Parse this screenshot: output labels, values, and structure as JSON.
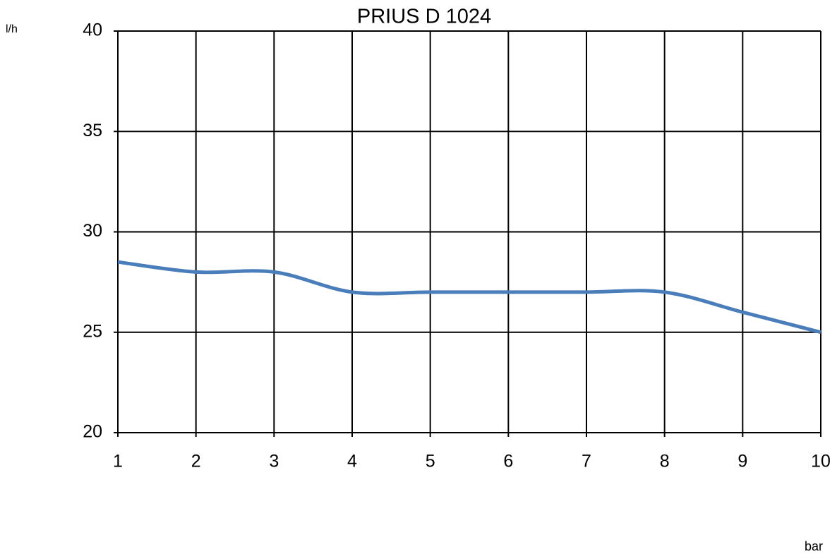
{
  "chart_data": {
    "type": "line",
    "title": "PRIUS D 1024",
    "y_label": "l/h",
    "x_label": "bar",
    "x": [
      1,
      2,
      3,
      4,
      5,
      6,
      7,
      8,
      9,
      10
    ],
    "series": [
      {
        "name": "PRIUS D 1024",
        "color": "#4a7ebb",
        "values": [
          28.5,
          28,
          28,
          27,
          27,
          27,
          27,
          27,
          26,
          25
        ]
      }
    ],
    "xlim": [
      1,
      10
    ],
    "xticks": [
      1,
      2,
      3,
      4,
      5,
      6,
      7,
      8,
      9,
      10
    ],
    "ylim": [
      20,
      40
    ],
    "yticks": [
      20,
      25,
      30,
      35,
      40
    ],
    "grid": true,
    "smooth": true
  }
}
